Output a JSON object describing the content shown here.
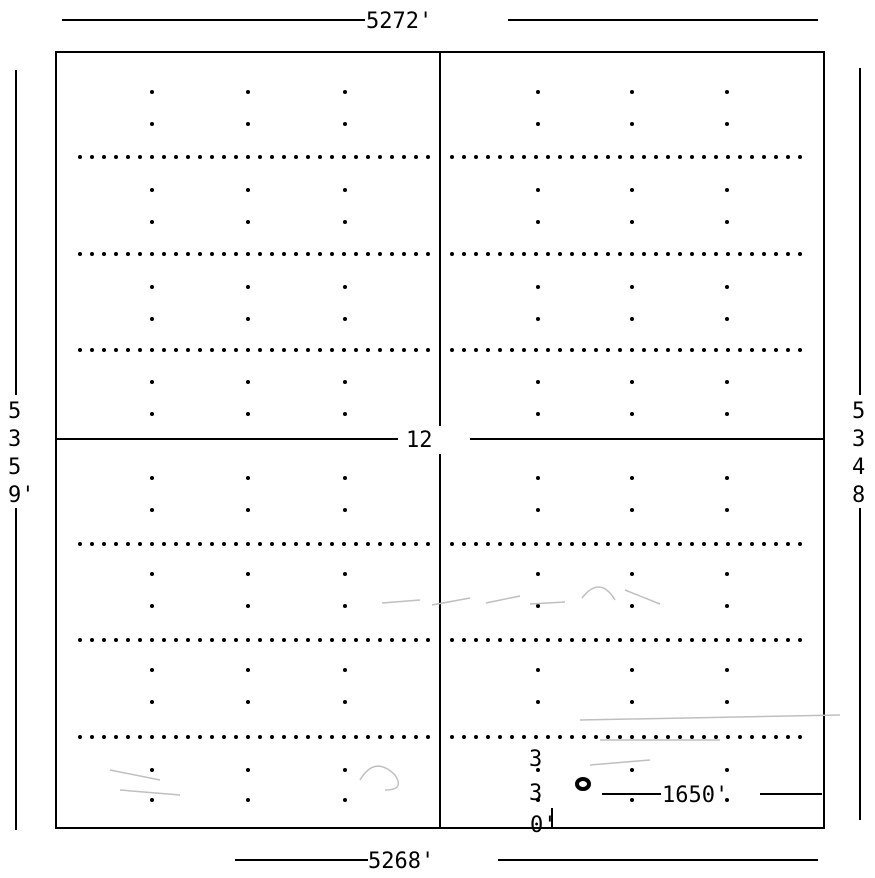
{
  "plat": {
    "top_dimension": "5272'",
    "bottom_dimension": "5268'",
    "left_dimension_chars": [
      "5",
      "3",
      "5",
      "9'"
    ],
    "right_dimension_chars": [
      "5",
      "3",
      "4",
      "8"
    ],
    "section_number": "12",
    "well_offset_east": "1650'",
    "well_offset_south_chars": [
      "3",
      "3",
      "0'"
    ]
  }
}
